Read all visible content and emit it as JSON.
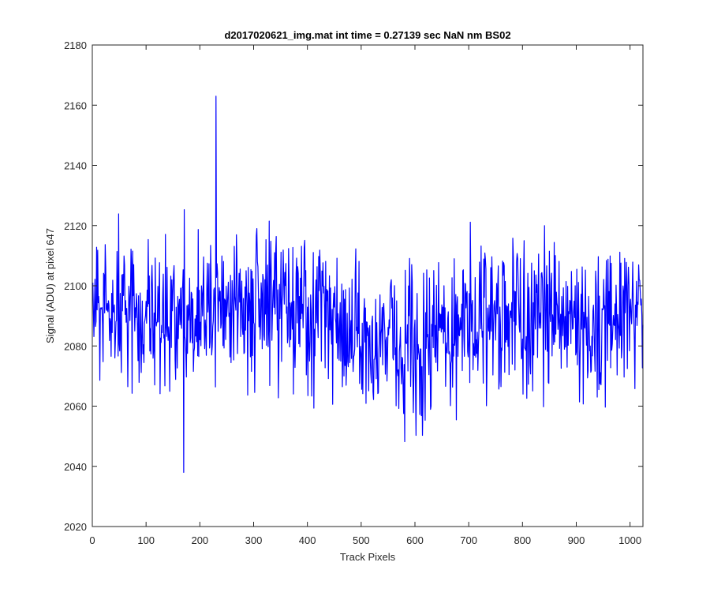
{
  "chart_data": {
    "type": "line",
    "title": "d2017020621_img.mat int time = 0.27139 sec  NaN nm BS02",
    "xlabel": "Track Pixels",
    "ylabel": "Signal (ADU) at pixel 647",
    "xlim": [
      0,
      1024
    ],
    "ylim": [
      2020,
      2180
    ],
    "x_ticks": [
      "0",
      "100",
      "200",
      "300",
      "400",
      "500",
      "600",
      "700",
      "800",
      "900",
      "1000"
    ],
    "y_ticks": [
      "2020",
      "2040",
      "2060",
      "2080",
      "2100",
      "2120",
      "2140",
      "2160",
      "2180"
    ],
    "grid": false,
    "legend": "none",
    "series": [
      {
        "color": "#0000ff",
        "x": [
          1,
          1024
        ],
        "y": [
          2101,
          2087
        ],
        "notes_y_min": 2038,
        "notes_y_max": 2163
      }
    ],
    "annotated_points": {
      "min": {
        "x": 170,
        "y": 2038
      },
      "max": {
        "x": 230,
        "y": 2163
      }
    }
  }
}
